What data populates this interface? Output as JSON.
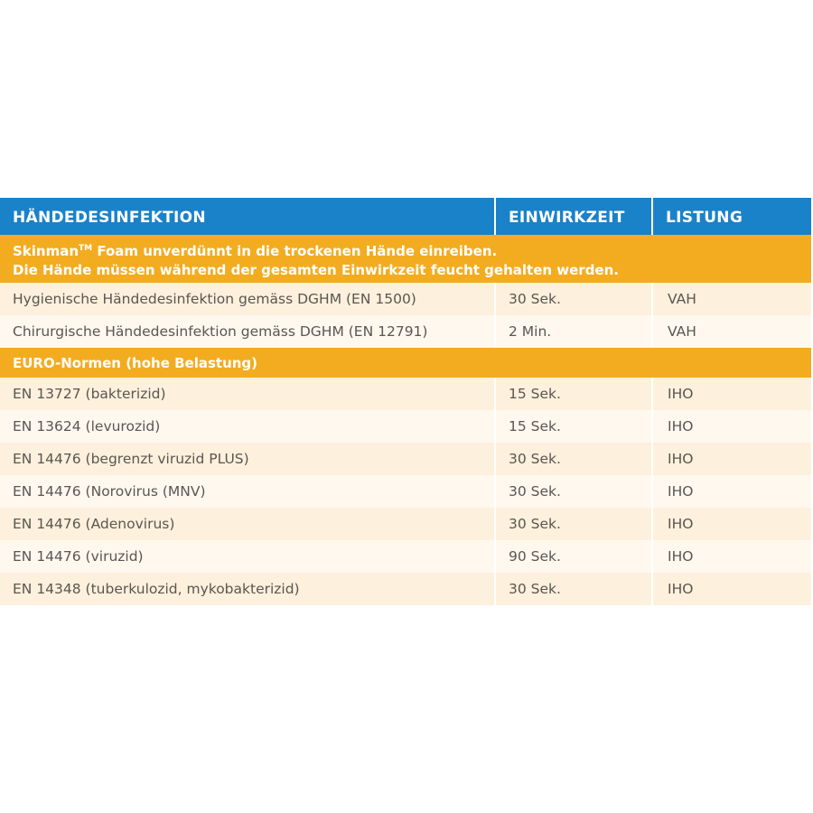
{
  "table": {
    "header": {
      "col1": "HÄNDEDESINFEKTION",
      "col2": "EINWIRKZEIT",
      "col3": "LISTUNG"
    },
    "section1": {
      "line1_prefix": "Skinman",
      "line1_tm": "TM",
      "line1_rest": " Foam unverdünnt in die trockenen Hände einreiben.",
      "line2": "Die Hände müssen während der gesamten Einwirkzeit feucht gehalten werden."
    },
    "section1_rows": [
      {
        "name": "Hygienische Händedesinfektion gemäss DGHM (EN 1500)",
        "time": "30 Sek.",
        "listing": "VAH"
      },
      {
        "name": "Chirurgische Händedesinfektion gemäss DGHM (EN 12791)",
        "time": "2 Min.",
        "listing": "VAH"
      }
    ],
    "section2": {
      "title": "EURO-Normen (hohe Belastung)"
    },
    "section2_rows": [
      {
        "name": "EN 13727 (bakterizid)",
        "time": "15 Sek.",
        "listing": "IHO"
      },
      {
        "name": "EN 13624 (levurozid)",
        "time": "15 Sek.",
        "listing": "IHO"
      },
      {
        "name": "EN 14476 (begrenzt viruzid PLUS)",
        "time": "30 Sek.",
        "listing": "IHO"
      },
      {
        "name": "EN 14476 (Norovirus (MNV)",
        "time": "30 Sek.",
        "listing": "IHO"
      },
      {
        "name": "EN 14476 (Adenovirus)",
        "time": "30 Sek.",
        "listing": "IHO"
      },
      {
        "name": "EN 14476 (viruzid)",
        "time": "90 Sek.",
        "listing": "IHO"
      },
      {
        "name": "EN 14348 (tuberkulozid, mykobakterizid)",
        "time": "30 Sek.",
        "listing": "IHO"
      }
    ]
  },
  "colors": {
    "header_blue": "#1a82c8",
    "section_orange": "#f3ac20",
    "row_light": "#fef8ef",
    "row_dark": "#fdf0dc",
    "text_gray": "#5a5652"
  }
}
